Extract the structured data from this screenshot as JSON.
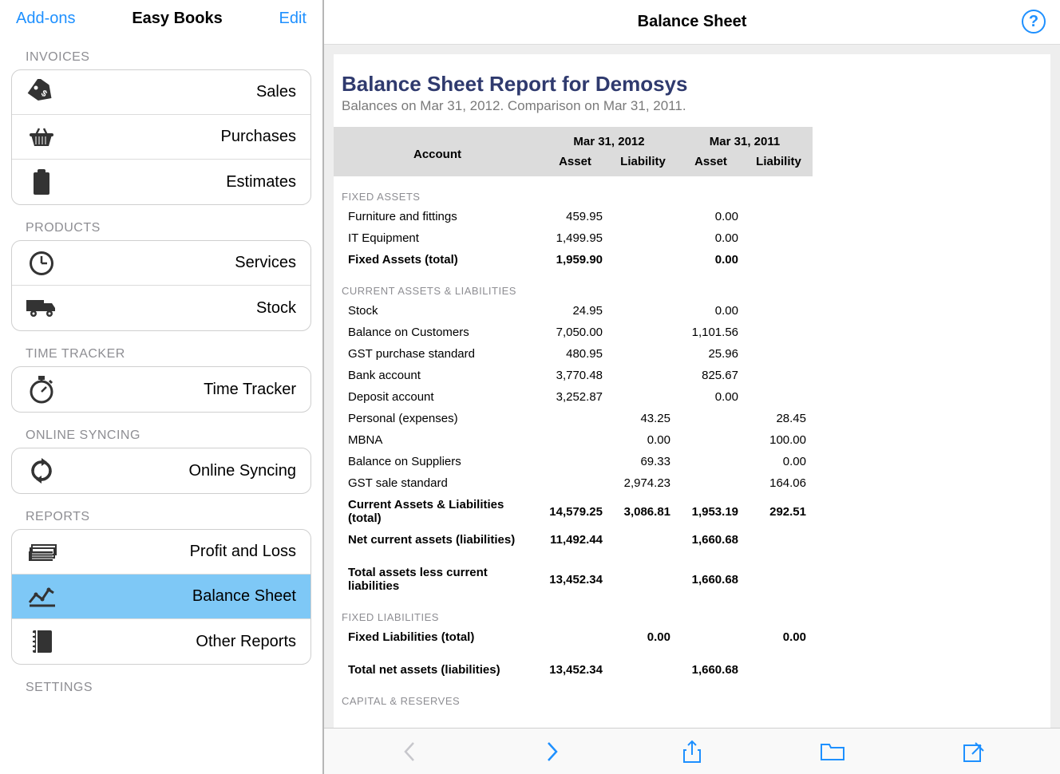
{
  "colors": {
    "link_blue": "#1e90ff",
    "gray_text": "#8e8e93",
    "border": "#cfcfcf",
    "row_divider": "#dcdcdc",
    "active_row_bg": "#7ec8f6",
    "content_bg": "#eeeeee",
    "report_title": "#2f3a6e",
    "toolbar_bg": "#f9f9f9",
    "toolbar_disabled": "#c7c7cc"
  },
  "header": {
    "addons": "Add-ons",
    "app_title": "Easy Books",
    "edit": "Edit"
  },
  "sidebar": {
    "sections": [
      {
        "title": "INVOICES",
        "items": [
          {
            "key": "sales",
            "label": "Sales",
            "icon": "tag"
          },
          {
            "key": "purchases",
            "label": "Purchases",
            "icon": "basket"
          },
          {
            "key": "estimates",
            "label": "Estimates",
            "icon": "clipboard"
          }
        ]
      },
      {
        "title": "PRODUCTS",
        "items": [
          {
            "key": "services",
            "label": "Services",
            "icon": "clock"
          },
          {
            "key": "stock",
            "label": "Stock",
            "icon": "truck"
          }
        ]
      },
      {
        "title": "TIME TRACKER",
        "items": [
          {
            "key": "timetracker",
            "label": "Time Tracker",
            "icon": "stopwatch"
          }
        ]
      },
      {
        "title": "ONLINE SYNCING",
        "items": [
          {
            "key": "sync",
            "label": "Online Syncing",
            "icon": "sync"
          }
        ]
      },
      {
        "title": "REPORTS",
        "items": [
          {
            "key": "pnl",
            "label": "Profit and Loss",
            "icon": "cash-stack"
          },
          {
            "key": "balance",
            "label": "Balance Sheet",
            "icon": "chart-line",
            "active": true
          },
          {
            "key": "other",
            "label": "Other Reports",
            "icon": "notebook"
          }
        ]
      },
      {
        "title": "SETTINGS",
        "items": []
      }
    ]
  },
  "main": {
    "title": "Balance Sheet",
    "help": "?"
  },
  "report": {
    "title": "Balance Sheet Report for Demosys",
    "subtitle": "Balances on Mar 31, 2012. Comparison on Mar 31, 2011.",
    "periods": [
      "Mar 31, 2012",
      "Mar 31, 2011"
    ],
    "columns": [
      "Account",
      "Asset",
      "Liability",
      "Asset",
      "Liability"
    ],
    "sections": [
      {
        "header": "FIXED ASSETS",
        "rows": [
          {
            "label": "Furniture and fittings",
            "vals": [
              "459.95",
              "",
              "0.00",
              ""
            ]
          },
          {
            "label": "IT Equipment",
            "vals": [
              "1,499.95",
              "",
              "0.00",
              ""
            ]
          },
          {
            "label": "Fixed Assets (total)",
            "vals": [
              "1,959.90",
              "",
              "0.00",
              ""
            ],
            "bold": true
          }
        ]
      },
      {
        "header": "CURRENT ASSETS & LIABILITIES",
        "rows": [
          {
            "label": "Stock",
            "vals": [
              "24.95",
              "",
              "0.00",
              ""
            ]
          },
          {
            "label": "Balance on Customers",
            "vals": [
              "7,050.00",
              "",
              "1,101.56",
              ""
            ]
          },
          {
            "label": "GST purchase standard",
            "vals": [
              "480.95",
              "",
              "25.96",
              ""
            ]
          },
          {
            "label": "Bank account",
            "vals": [
              "3,770.48",
              "",
              "825.67",
              ""
            ]
          },
          {
            "label": "Deposit account",
            "vals": [
              "3,252.87",
              "",
              "0.00",
              ""
            ]
          },
          {
            "label": "Personal (expenses)",
            "vals": [
              "",
              "43.25",
              "",
              "28.45"
            ]
          },
          {
            "label": "MBNA",
            "vals": [
              "",
              "0.00",
              "",
              "100.00"
            ]
          },
          {
            "label": "Balance on Suppliers",
            "vals": [
              "",
              "69.33",
              "",
              "0.00"
            ]
          },
          {
            "label": "GST sale standard",
            "vals": [
              "",
              "2,974.23",
              "",
              "164.06"
            ]
          },
          {
            "label": "Current Assets & Liabilities (total)",
            "vals": [
              "14,579.25",
              "3,086.81",
              "1,953.19",
              "292.51"
            ],
            "bold": true
          },
          {
            "label": "Net current assets (liabilities)",
            "vals": [
              "11,492.44",
              "",
              "1,660.68",
              ""
            ],
            "bold": true
          },
          {
            "spacer": true
          },
          {
            "label": "Total assets less current liabilities",
            "vals": [
              "13,452.34",
              "",
              "1,660.68",
              ""
            ],
            "bold": true
          }
        ]
      },
      {
        "header": "FIXED LIABILITIES",
        "rows": [
          {
            "label": "Fixed Liabilities (total)",
            "vals": [
              "",
              "0.00",
              "",
              "0.00"
            ],
            "bold": true
          },
          {
            "spacer": true
          },
          {
            "label": "Total net assets (liabilities)",
            "vals": [
              "13,452.34",
              "",
              "1,660.68",
              ""
            ],
            "bold": true
          }
        ]
      },
      {
        "header": "CAPITAL & RESERVES",
        "rows": []
      }
    ]
  },
  "toolbar": {
    "prev": "prev",
    "next": "next",
    "share": "share",
    "folder": "folder",
    "compose": "compose"
  }
}
